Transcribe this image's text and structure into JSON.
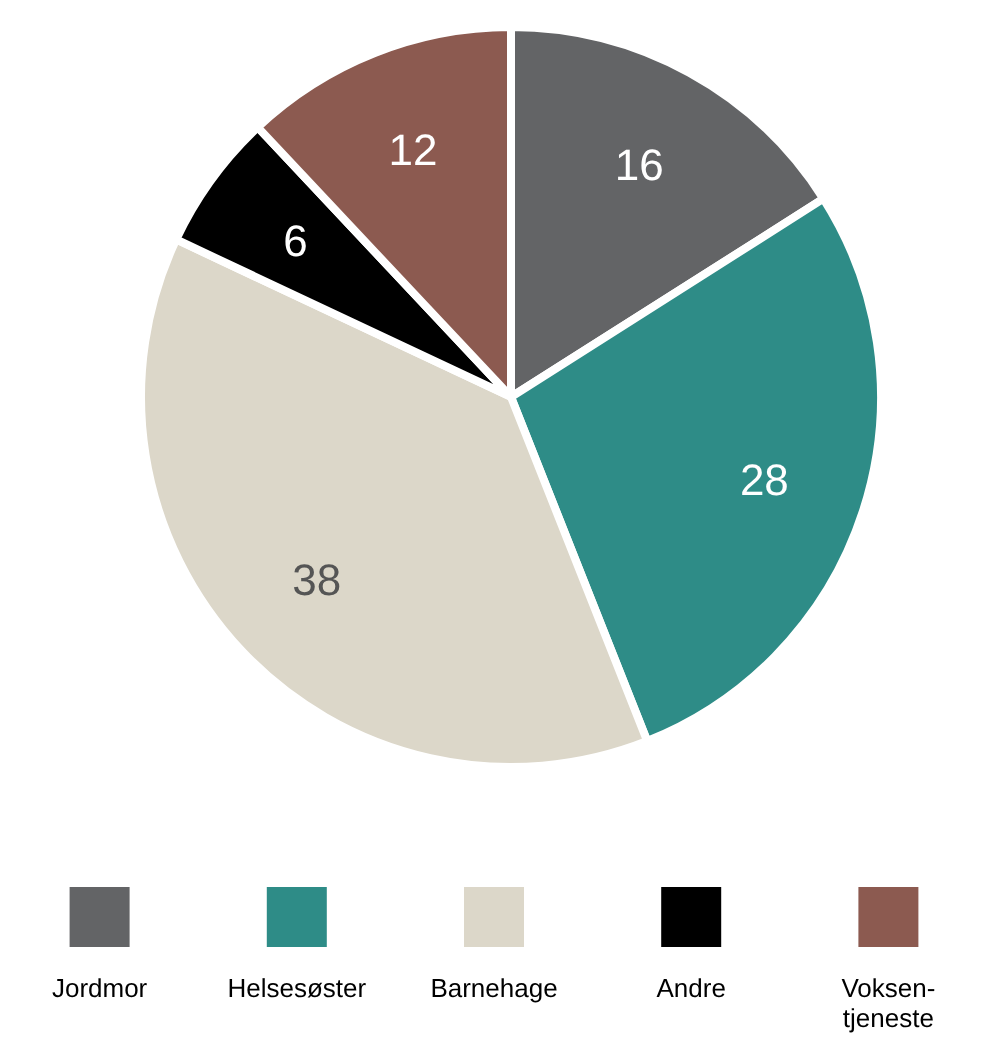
{
  "chart_data": {
    "type": "pie",
    "categories": [
      "Jordmor",
      "Helsesøster",
      "Barnehage",
      "Andre",
      "Voksen-\ntjeneste"
    ],
    "values": [
      16,
      28,
      38,
      6,
      12
    ],
    "colors": [
      "#636466",
      "#2e8c87",
      "#dcd7c9",
      "#000000",
      "#8c5a50"
    ],
    "data_labels": true,
    "legend": "bottom"
  }
}
